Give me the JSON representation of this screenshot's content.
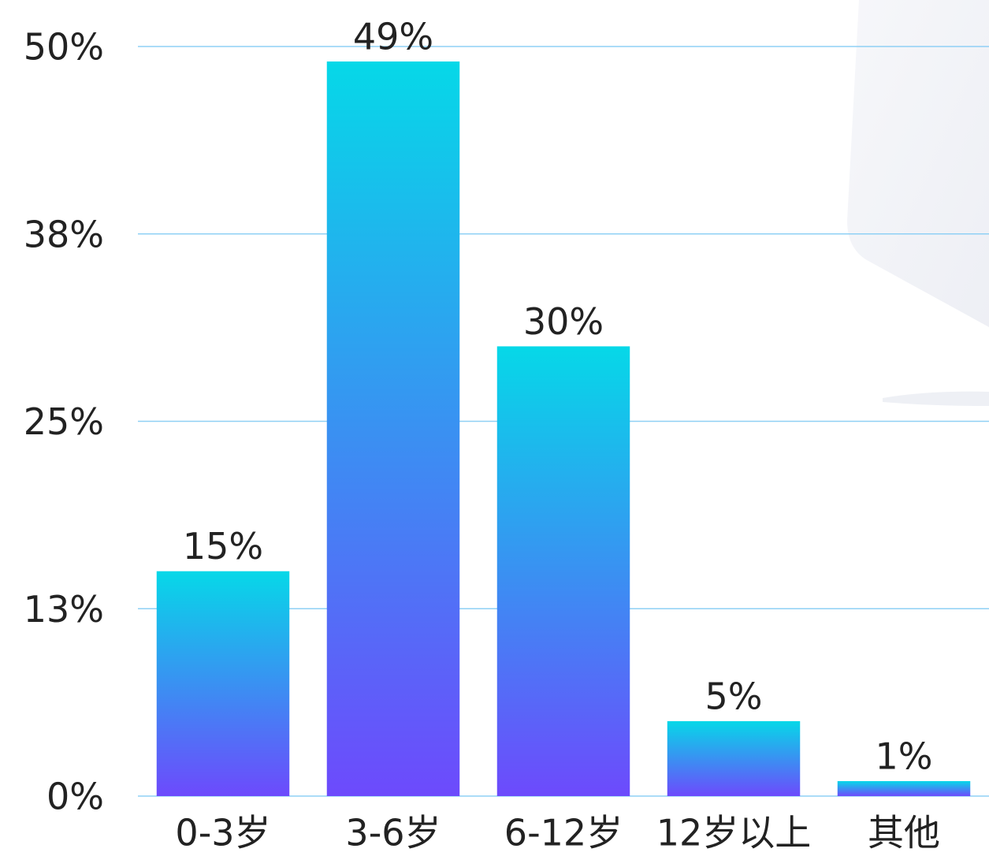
{
  "chart_data": {
    "type": "bar",
    "categories": [
      "0-3岁",
      "3-6岁",
      "6-12岁",
      "12岁以上",
      "其他"
    ],
    "values": [
      15,
      49,
      30,
      5,
      1
    ],
    "value_labels": [
      "15%",
      "49%",
      "30%",
      "5%",
      "1%"
    ],
    "gradient": [
      "#06d8e8",
      "#6d4afc"
    ],
    "ylim": [
      0,
      50
    ],
    "yticks": [
      {
        "value": 0,
        "label": "0%"
      },
      {
        "value": 12.5,
        "label": "13%"
      },
      {
        "value": 25,
        "label": "25%"
      },
      {
        "value": 37.5,
        "label": "38%"
      },
      {
        "value": 50,
        "label": "50%"
      }
    ],
    "grid": true,
    "grid_color": "#8fd0f5"
  }
}
